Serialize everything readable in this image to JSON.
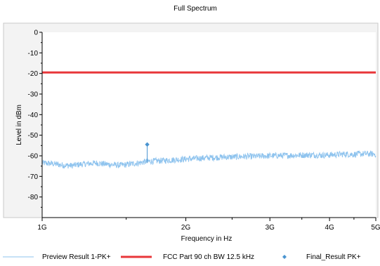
{
  "chart_data": {
    "type": "line",
    "title": "Full Spectrum",
    "xlabel": "Frequency in Hz",
    "ylabel": "Level in dBm",
    "x_scale": "log",
    "x_unit": "Hz",
    "xlim": [
      1000000000,
      5000000000
    ],
    "ylim": [
      -90,
      0
    ],
    "x_ticks": [
      {
        "value": 1000000000,
        "label": "1G"
      },
      {
        "value": 2000000000,
        "label": "2G"
      },
      {
        "value": 3000000000,
        "label": "3G"
      },
      {
        "value": 4000000000,
        "label": "4G"
      },
      {
        "value": 5000000000,
        "label": "5G"
      }
    ],
    "y_ticks": [
      {
        "value": 0,
        "label": "0"
      },
      {
        "value": -10,
        "label": "-10"
      },
      {
        "value": -20,
        "label": "-20"
      },
      {
        "value": -30,
        "label": "-30"
      },
      {
        "value": -40,
        "label": "-40"
      },
      {
        "value": -50,
        "label": "-50"
      },
      {
        "value": -60,
        "label": "-60"
      },
      {
        "value": -70,
        "label": "-70"
      },
      {
        "value": -80,
        "label": "-80"
      }
    ],
    "grid": false,
    "legend_position": "bottom",
    "series": [
      {
        "name": "Preview Result 1-PK+",
        "kind": "trace",
        "color": "#8ec3ee",
        "x": [
          1000000000,
          1050000000,
          1100000000,
          1150000000,
          1200000000,
          1250000000,
          1300000000,
          1350000000,
          1400000000,
          1450000000,
          1500000000,
          1550000000,
          1600000000,
          1650000000,
          1700000000,
          1800000000,
          1900000000,
          2000000000,
          2100000000,
          2200000000,
          2300000000,
          2400000000,
          2500000000,
          2600000000,
          2700000000,
          2800000000,
          2900000000,
          3000000000,
          3150000000,
          3300000000,
          3450000000,
          3600000000,
          3750000000,
          3900000000,
          4050000000,
          4200000000,
          4350000000,
          4500000000,
          4650000000,
          4800000000,
          5000000000
        ],
        "y": [
          -63.5,
          -63.8,
          -64.5,
          -64.8,
          -64.2,
          -63.8,
          -63.5,
          -64.0,
          -64.3,
          -64.6,
          -64.3,
          -63.8,
          -63.4,
          -62.8,
          -62.6,
          -62.3,
          -61.9,
          -61.6,
          -61.3,
          -61.0,
          -60.8,
          -60.6,
          -60.6,
          -60.4,
          -60.3,
          -60.3,
          -60.1,
          -60.0,
          -59.9,
          -59.8,
          -59.7,
          -59.6,
          -59.6,
          -59.7,
          -59.5,
          -59.3,
          -59.2,
          -59.3,
          -59.1,
          -59.0,
          -59.2
        ],
        "noise_db": 1.5
      },
      {
        "name": "FCC Part 90 ch BW 12.5 kHz",
        "kind": "limit",
        "color": "#e8373a",
        "x": [
          1000000000,
          5000000000
        ],
        "y": [
          -19.5,
          -19.5
        ]
      },
      {
        "name": "Final_Result PK+",
        "kind": "points",
        "color": "#4a94d0",
        "x": [
          1660000000
        ],
        "y": [
          -54.5
        ],
        "stem_to": -63.5
      }
    ]
  }
}
